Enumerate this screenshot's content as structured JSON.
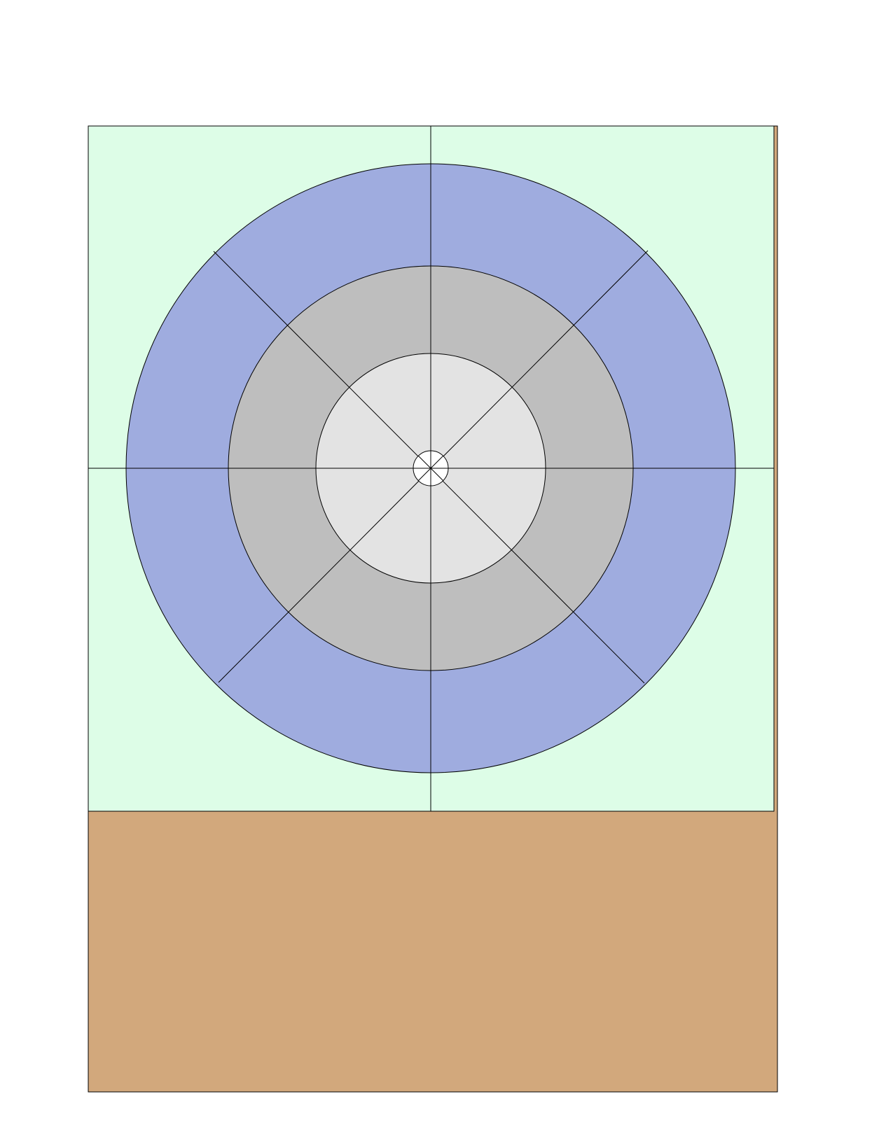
{
  "colors": {
    "background": "#ffffff",
    "upper_panel": "#ddfde7",
    "base_panel": "#d2a87c",
    "outer_ring": "#9facdf",
    "middle_ring": "#bebebe",
    "inner_disc": "#e3e3e3",
    "hub": "#ffffff",
    "stroke": "#000000"
  },
  "diagram": {
    "rings": 3,
    "radial_divisions": 8,
    "has_center_hub": true
  }
}
